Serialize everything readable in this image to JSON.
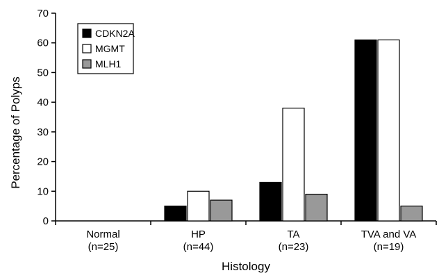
{
  "chart_data": {
    "type": "bar",
    "title": "",
    "xlabel": "Histology",
    "ylabel": "Percentage of Polyps",
    "ylim": [
      0,
      70
    ],
    "yticks": [
      0,
      10,
      20,
      30,
      40,
      50,
      60,
      70
    ],
    "grid": false,
    "legend_position": "top-left",
    "categories": [
      {
        "name": "Normal",
        "n": "(n=25)"
      },
      {
        "name": "HP",
        "n": "(n=44)"
      },
      {
        "name": "TA",
        "n": "(n=23)"
      },
      {
        "name": "TVA and VA",
        "n": "(n=19)"
      }
    ],
    "series": [
      {
        "name": "CDKN2A",
        "color": "#000000",
        "values": [
          0,
          5,
          13,
          61
        ]
      },
      {
        "name": "MGMT",
        "color": "#ffffff",
        "values": [
          0,
          10,
          38,
          61
        ]
      },
      {
        "name": "MLH1",
        "color": "#999999",
        "values": [
          0,
          7,
          9,
          5
        ]
      }
    ]
  }
}
